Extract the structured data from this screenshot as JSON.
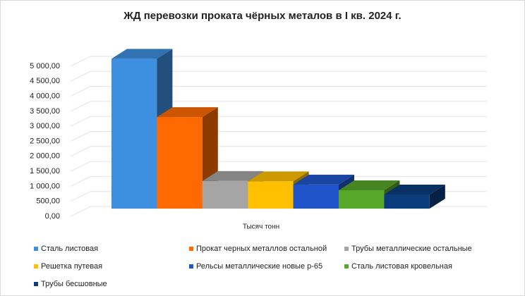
{
  "chart_data": {
    "type": "bar3d",
    "title": "ЖД перевозки проката чёрных металов в I кв. 2024 г.",
    "categories": [
      "Тысяч тонн"
    ],
    "series": [
      {
        "name": "Сталь листовая",
        "color": "#3d8fe0",
        "values": [
          4990
        ]
      },
      {
        "name": "Прокат черных металлов остальной",
        "color": "#ff6a00",
        "values": [
          3050
        ]
      },
      {
        "name": "Трубы металлические остальные",
        "color": "#a5a5a5",
        "values": [
          920
        ]
      },
      {
        "name": "Решетка путевая",
        "color": "#ffc000",
        "values": [
          910
        ]
      },
      {
        "name": "Рельсы металлические новые р-65",
        "color": "#1f55c9",
        "values": [
          800
        ]
      },
      {
        "name": "Сталь листовая кровельная",
        "color": "#58a82a",
        "values": [
          610
        ]
      },
      {
        "name": "Трубы бесшовные",
        "color": "#0b3c7c",
        "values": [
          470
        ]
      }
    ],
    "ylim": [
      0,
      5000
    ],
    "yticks": [
      {
        "value": 0,
        "label": "0,00"
      },
      {
        "value": 500,
        "label": "500,00"
      },
      {
        "value": 1000,
        "label": "1 000,00"
      },
      {
        "value": 1500,
        "label": "1 500,00"
      },
      {
        "value": 2000,
        "label": "2 000,00"
      },
      {
        "value": 2500,
        "label": "2 500,00"
      },
      {
        "value": 3000,
        "label": "3 000,00"
      },
      {
        "value": 3500,
        "label": "3 500,00"
      },
      {
        "value": 4000,
        "label": "4 000,00"
      },
      {
        "value": 4500,
        "label": "4 500,00"
      },
      {
        "value": 5000,
        "label": "5 000,00"
      }
    ],
    "grid": true,
    "legend": "bottom"
  }
}
